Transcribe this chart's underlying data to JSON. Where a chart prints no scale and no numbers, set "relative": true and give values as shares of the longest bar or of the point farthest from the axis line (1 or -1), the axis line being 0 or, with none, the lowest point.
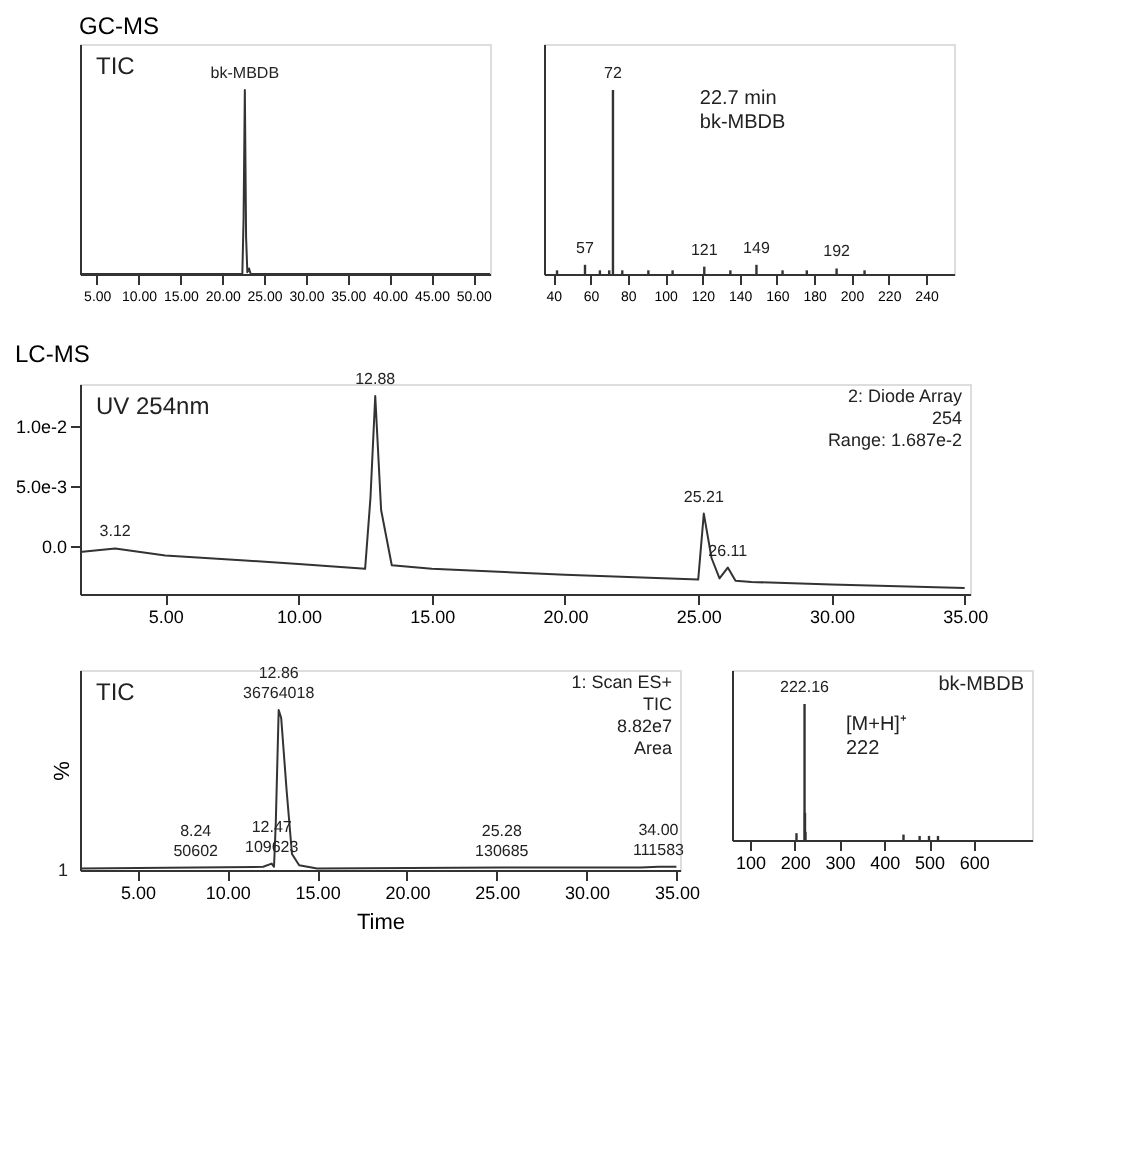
{
  "chart_data": [
    {
      "type": "line",
      "title": "GC-MS",
      "relative": true,
      "color": "#333333",
      "x": [
        3,
        22.4,
        22.55,
        22.7,
        22.85,
        23.0,
        23.2,
        23.4,
        52
      ],
      "values": [
        0,
        0,
        0.3,
        1,
        0.2,
        0.01,
        0.03,
        0,
        0
      ],
      "xlim": [
        3,
        52
      ],
      "xticks": [
        {
          "value": 5,
          "label": "5.00"
        },
        {
          "value": 10,
          "label": "10.00"
        },
        {
          "value": 15,
          "label": "15.00"
        },
        {
          "value": 20,
          "label": "20.00"
        },
        {
          "value": 25,
          "label": "25.00"
        },
        {
          "value": 30,
          "label": "30.00"
        },
        {
          "value": 35,
          "label": "35.00"
        },
        {
          "value": 40,
          "label": "40.00"
        },
        {
          "value": 45,
          "label": "45.00"
        },
        {
          "value": 50,
          "label": "50.00"
        }
      ],
      "annotations": [
        "TIC",
        {
          "text": "bk-MBDB",
          "x": 22.7,
          "y": 1
        }
      ],
      "marker": "none",
      "line_style": "solid",
      "grid": false
    },
    {
      "type": "bar",
      "relative": true,
      "color": "#333333",
      "x": [
        42,
        57,
        65,
        70,
        72,
        77,
        91,
        104,
        121,
        135,
        149,
        163,
        176,
        192,
        207
      ],
      "values": [
        0.02,
        0.05,
        0.02,
        0.02,
        1,
        0.02,
        0.02,
        0.02,
        0.04,
        0.02,
        0.05,
        0.02,
        0.02,
        0.03,
        0.02
      ],
      "xlim": [
        35,
        255
      ],
      "tick_labels": "x",
      "xticks": [
        40,
        60,
        80,
        100,
        120,
        140,
        160,
        180,
        200,
        220,
        240
      ],
      "annotations": [
        "22.7 min\nbk-MBDB",
        {
          "text": "57",
          "x": 57,
          "y": 0.05
        },
        {
          "text": "72",
          "x": 72,
          "y": 1
        },
        {
          "text": "121",
          "x": 121,
          "y": 0.04
        },
        {
          "text": "149",
          "x": 149,
          "y": 0.05
        },
        {
          "text": "192",
          "x": 192,
          "y": 0.03
        }
      ],
      "grid": false
    },
    {
      "type": "line",
      "title": "LC-MS",
      "color": "#333333",
      "x": [
        1.8,
        3.12,
        5,
        8,
        10,
        12.5,
        12.7,
        12.88,
        13.1,
        13.5,
        15,
        20,
        25.0,
        25.21,
        25.5,
        25.8,
        26.11,
        26.4,
        27,
        30,
        35
      ],
      "values": [
        -0.0005,
        -0.0002,
        -0.0008,
        -0.0012,
        -0.0015,
        -0.0019,
        0.004,
        0.0125,
        0.003,
        -0.0016,
        -0.0019,
        -0.0024,
        -0.0028,
        0.0027,
        -0.001,
        -0.0027,
        -0.0018,
        -0.0029,
        -0.003,
        -0.0032,
        -0.0035
      ],
      "xlim": [
        1.8,
        35.2
      ],
      "ylim": [
        -0.004,
        0.0135
      ],
      "xticks": [
        {
          "value": 5,
          "label": "5.00"
        },
        {
          "value": 10,
          "label": "10.00"
        },
        {
          "value": 15,
          "label": "15.00"
        },
        {
          "value": 20,
          "label": "20.00"
        },
        {
          "value": 25,
          "label": "25.00"
        },
        {
          "value": 30,
          "label": "30.00"
        },
        {
          "value": 35,
          "label": "35.00"
        }
      ],
      "yticks": [
        {
          "value": 0,
          "label": "0.0"
        },
        {
          "value": 0.005,
          "label": "5.0e-3"
        },
        {
          "value": 0.01,
          "label": "1.0e-2"
        }
      ],
      "annotations": [
        "UV 254nm",
        "2: Diode Array\n254\nRange: 1.687e-2",
        {
          "text": "3.12",
          "x": 3.12,
          "y": -0.0002
        },
        {
          "text": "12.88",
          "x": 12.88,
          "y": 0.0125
        },
        {
          "text": "25.21",
          "x": 25.21,
          "y": 0.0027
        },
        {
          "text": "26.11",
          "x": 26.11,
          "y": -0.0018
        }
      ],
      "marker": "none",
      "line_style": "solid",
      "grid": false
    },
    {
      "type": "line",
      "relative": true,
      "color": "#333333",
      "xlabel": "Time",
      "ylabel": "%",
      "x": [
        1.8,
        8.24,
        12.0,
        12.47,
        12.6,
        12.7,
        12.86,
        13.0,
        13.3,
        13.6,
        14,
        15,
        25.28,
        33,
        34,
        35
      ],
      "values": [
        0.01,
        0.015,
        0.02,
        0.04,
        0.02,
        0.3,
        1,
        0.95,
        0.5,
        0.1,
        0.03,
        0.01,
        0.015,
        0.015,
        0.02,
        0.02
      ],
      "xlim": [
        1.8,
        35.2
      ],
      "xticks": [
        {
          "value": 5,
          "label": "5.00"
        },
        {
          "value": 10,
          "label": "10.00"
        },
        {
          "value": 15,
          "label": "15.00"
        },
        {
          "value": 20,
          "label": "20.00"
        },
        {
          "value": 25,
          "label": "25.00"
        },
        {
          "value": 30,
          "label": "30.00"
        },
        {
          "value": 35,
          "label": "35.00"
        }
      ],
      "annotations": [
        "TIC",
        "1: Scan ES+\nTIC\n8.82e7\nArea",
        "1",
        {
          "text": "8.24\n50602",
          "x": 8.24,
          "y": 0.015
        },
        {
          "text": "12.47\n109623",
          "x": 12.47,
          "y": 0.04
        },
        {
          "text": "12.86\n36764018",
          "x": 12.86,
          "y": 1
        },
        {
          "text": "25.28\n130685",
          "x": 25.28,
          "y": 0.015
        },
        {
          "text": "34.00\n111583",
          "x": 34,
          "y": 0.02
        }
      ],
      "marker": "none",
      "line_style": "solid",
      "grid": false
    },
    {
      "type": "bar",
      "relative": true,
      "color": "#333333",
      "x": [
        204,
        222,
        223,
        224,
        443,
        479,
        500,
        520
      ],
      "values": [
        0.05,
        1,
        0.2,
        0.06,
        0.04,
        0.03,
        0.03,
        0.03
      ],
      "xlim": [
        60,
        730
      ],
      "tick_labels": "x",
      "xticks": [
        100,
        200,
        300,
        400,
        500,
        600
      ],
      "annotations": [
        "[M+H]⁺\n222",
        "bk-MBDB",
        {
          "text": "222.16",
          "x": 222,
          "y": 1
        }
      ],
      "grid": false
    }
  ]
}
